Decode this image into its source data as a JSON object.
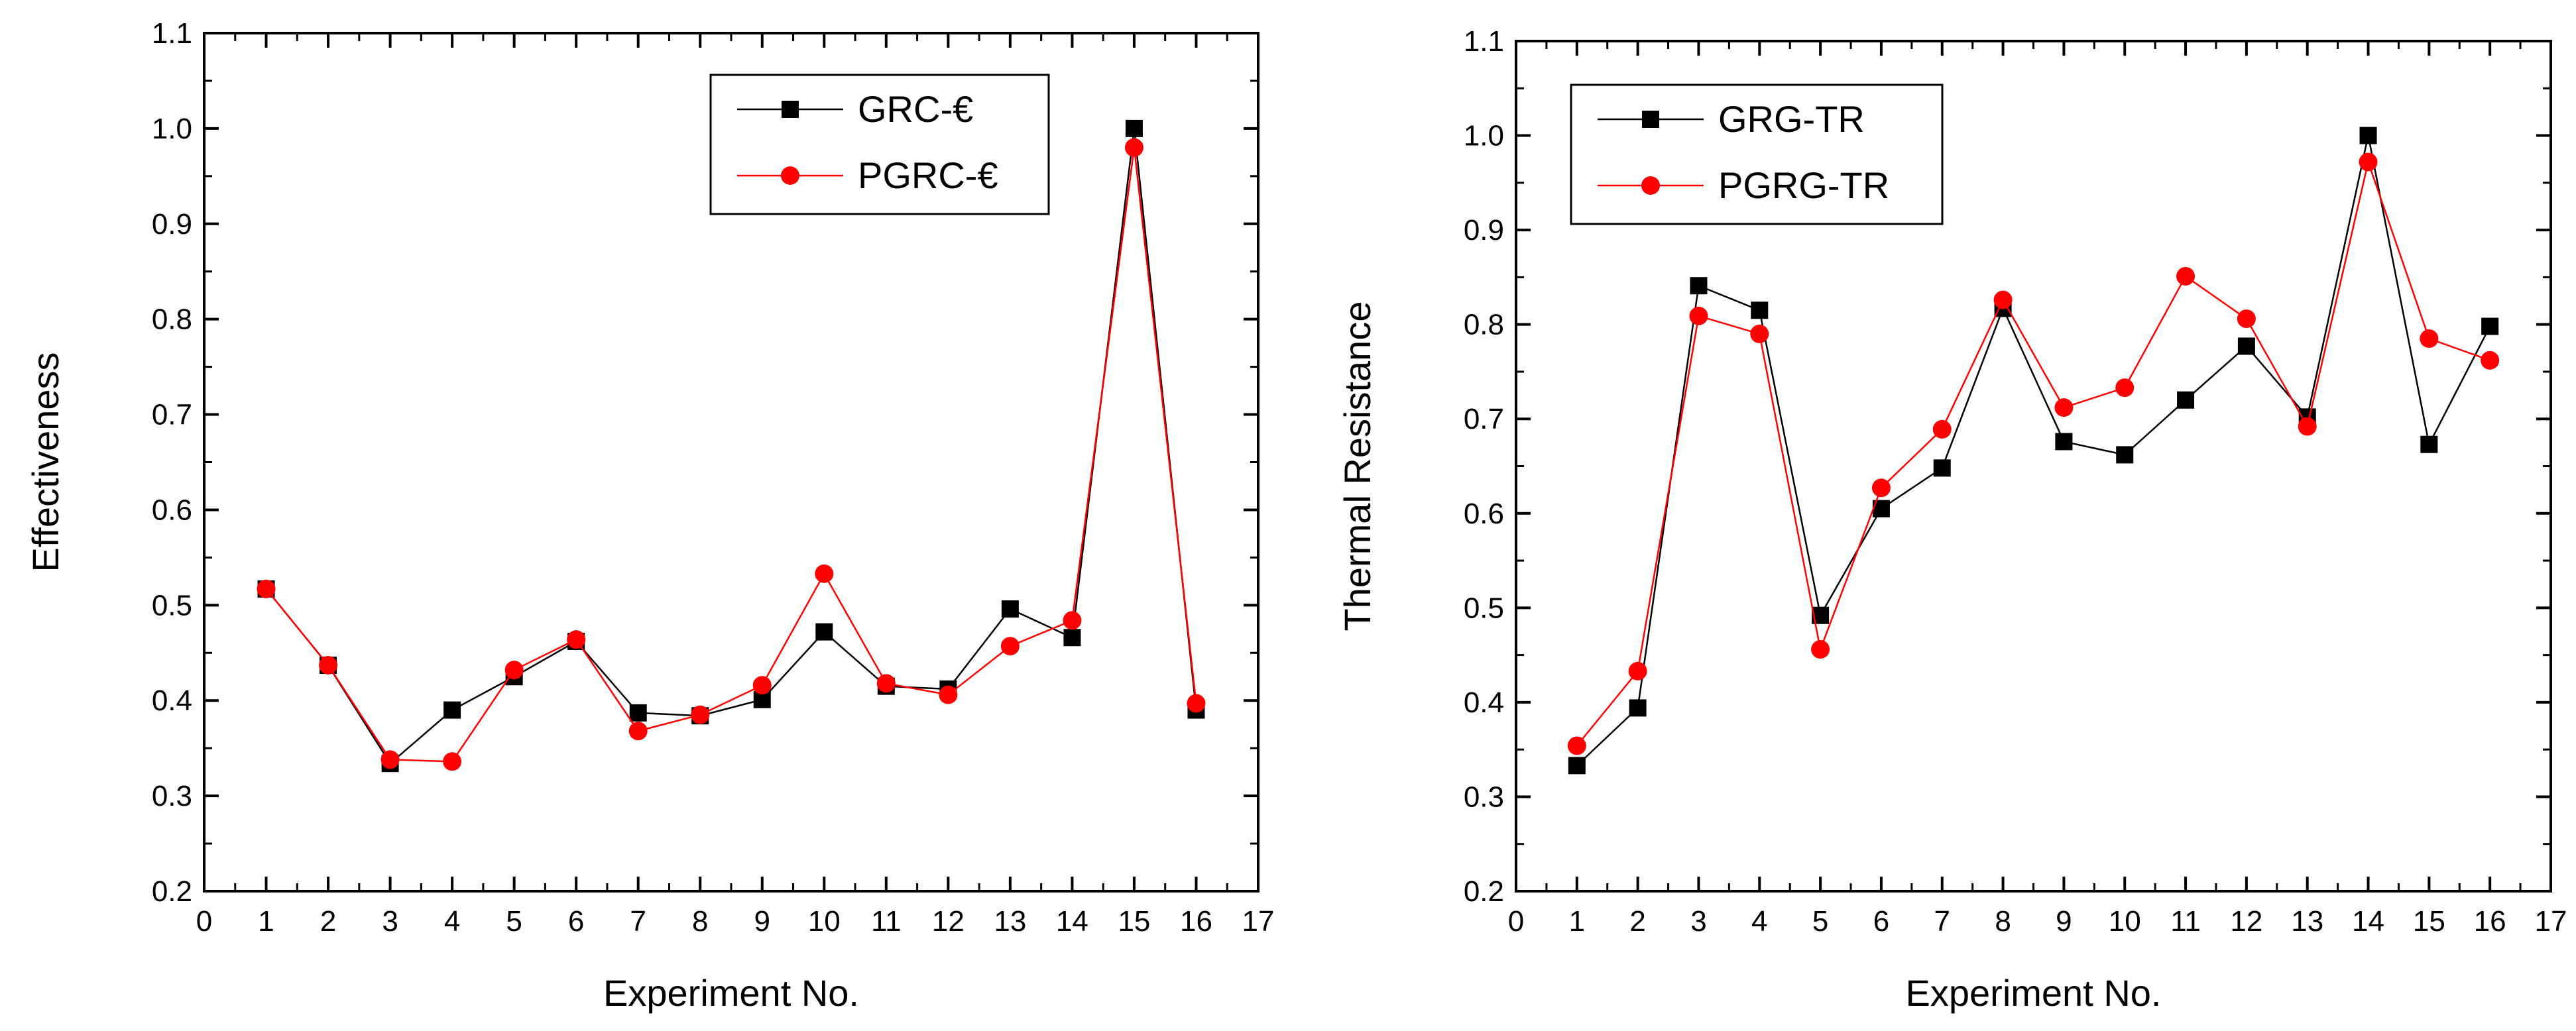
{
  "chart_data": [
    {
      "type": "line",
      "xlabel": "Experiment No.",
      "ylabel": "Effectiveness",
      "xlim": [
        0,
        17
      ],
      "ylim": [
        0.2,
        1.1
      ],
      "xticks": [
        0,
        1,
        2,
        3,
        4,
        5,
        6,
        7,
        8,
        9,
        10,
        11,
        12,
        13,
        14,
        15,
        16,
        17
      ],
      "yticks": [
        "0.2",
        "0.3",
        "0.4",
        "0.5",
        "0.6",
        "0.7",
        "0.8",
        "0.9",
        "1.0",
        "1.1"
      ],
      "legend_position": "top-right",
      "x": [
        1,
        2,
        3,
        4,
        5,
        6,
        7,
        8,
        9,
        10,
        11,
        12,
        13,
        14,
        15,
        16
      ],
      "series": [
        {
          "name": "GRC-€",
          "color": "#000000",
          "marker": "square",
          "values": [
            0.517,
            0.437,
            0.334,
            0.39,
            0.425,
            0.462,
            0.387,
            0.384,
            0.401,
            0.472,
            0.415,
            0.412,
            0.496,
            0.466,
            1.0,
            0.39
          ]
        },
        {
          "name": "PGRC-€",
          "color": "#ff0000",
          "marker": "circle",
          "values": [
            0.517,
            0.437,
            0.338,
            0.336,
            0.432,
            0.464,
            0.368,
            0.385,
            0.416,
            0.533,
            0.418,
            0.406,
            0.457,
            0.484,
            0.98,
            0.397
          ]
        }
      ]
    },
    {
      "type": "line",
      "xlabel": "Experiment No.",
      "ylabel": "Thermal Resistance",
      "xlim": [
        0,
        17
      ],
      "ylim": [
        0.2,
        1.1
      ],
      "xticks": [
        0,
        1,
        2,
        3,
        4,
        5,
        6,
        7,
        8,
        9,
        10,
        11,
        12,
        13,
        14,
        15,
        16,
        17
      ],
      "yticks": [
        "0.2",
        "0.3",
        "0.4",
        "0.5",
        "0.6",
        "0.7",
        "0.8",
        "0.9",
        "1.0",
        "1.1"
      ],
      "legend_position": "top-left",
      "x": [
        1,
        2,
        3,
        4,
        5,
        6,
        7,
        8,
        9,
        10,
        11,
        12,
        13,
        14,
        15,
        16
      ],
      "series": [
        {
          "name": "GRG-TR",
          "color": "#000000",
          "marker": "square",
          "values": [
            0.333,
            0.394,
            0.841,
            0.815,
            0.492,
            0.605,
            0.648,
            0.817,
            0.676,
            0.662,
            0.72,
            0.777,
            0.702,
            1.0,
            0.673,
            0.798
          ]
        },
        {
          "name": "PGRG-TR",
          "color": "#ff0000",
          "marker": "circle",
          "values": [
            0.354,
            0.433,
            0.809,
            0.79,
            0.456,
            0.627,
            0.689,
            0.826,
            0.712,
            0.733,
            0.851,
            0.806,
            0.692,
            0.972,
            0.785,
            0.762
          ]
        }
      ]
    }
  ]
}
